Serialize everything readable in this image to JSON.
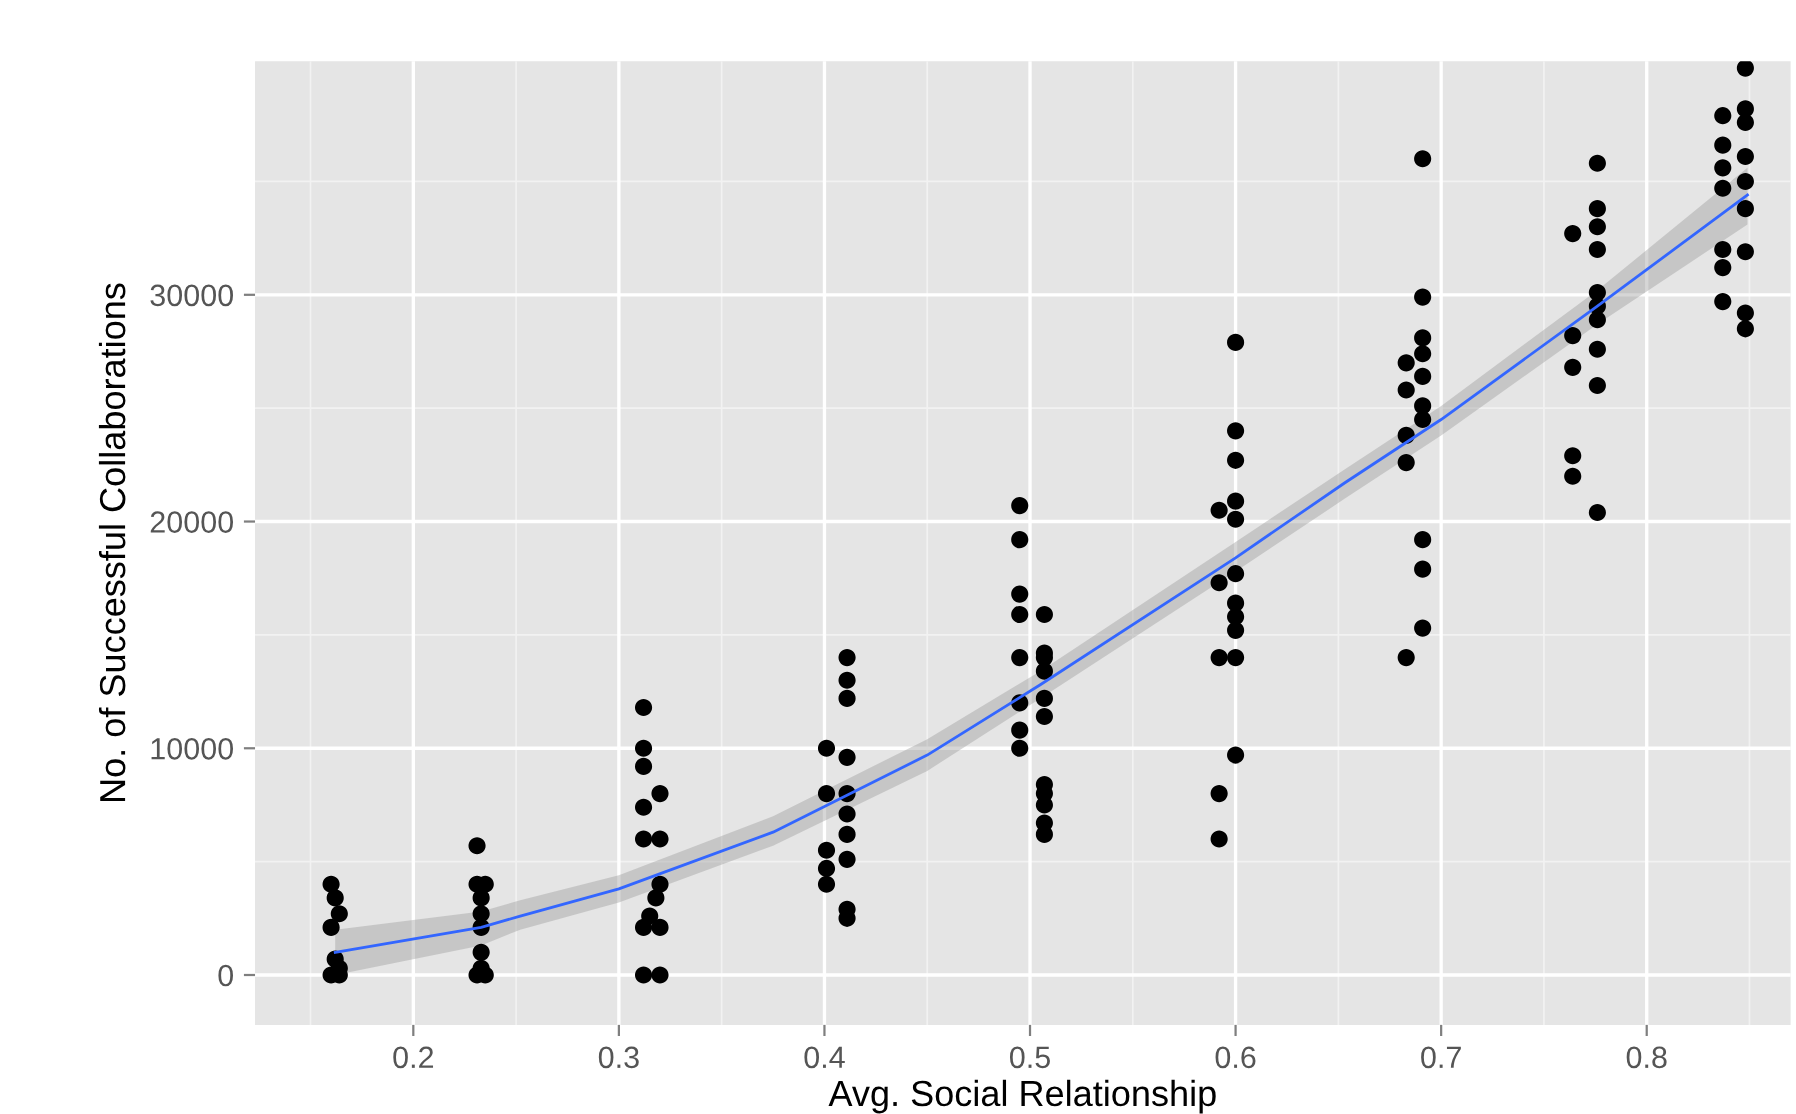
{
  "chart_data": {
    "type": "scatter",
    "xlabel": "Avg. Social Relationship",
    "ylabel": "No. of Successful Collaborations",
    "xlim": [
      0.123,
      0.87
    ],
    "ylim": [
      -2200,
      40300
    ],
    "xticks": [
      0.2,
      0.3,
      0.4,
      0.5,
      0.6,
      0.7,
      0.8
    ],
    "yticks": [
      0,
      10000,
      20000,
      30000
    ],
    "grid": true,
    "series": [
      {
        "color": "#000000",
        "marker": "circle",
        "x": [
          0.16,
          0.162,
          0.164,
          0.16,
          0.162,
          0.164,
          0.16,
          0.164,
          0.231,
          0.231,
          0.235,
          0.233,
          0.233,
          0.233,
          0.233,
          0.233,
          0.231,
          0.235,
          0.312,
          0.312,
          0.312,
          0.32,
          0.312,
          0.312,
          0.32,
          0.32,
          0.318,
          0.315,
          0.312,
          0.32,
          0.312,
          0.32,
          0.411,
          0.411,
          0.411,
          0.401,
          0.411,
          0.401,
          0.411,
          0.411,
          0.411,
          0.401,
          0.411,
          0.401,
          0.401,
          0.411,
          0.411,
          0.495,
          0.495,
          0.495,
          0.495,
          0.507,
          0.495,
          0.507,
          0.495,
          0.495,
          0.495,
          0.507,
          0.507,
          0.507,
          0.507,
          0.507,
          0.507,
          0.507,
          0.507,
          0.507,
          0.6,
          0.6,
          0.6,
          0.6,
          0.592,
          0.6,
          0.6,
          0.592,
          0.6,
          0.6,
          0.6,
          0.6,
          0.592,
          0.6,
          0.592,
          0.592,
          0.691,
          0.691,
          0.691,
          0.691,
          0.683,
          0.691,
          0.683,
          0.691,
          0.691,
          0.683,
          0.683,
          0.691,
          0.691,
          0.691,
          0.683,
          0.776,
          0.776,
          0.776,
          0.764,
          0.776,
          0.776,
          0.776,
          0.776,
          0.764,
          0.776,
          0.764,
          0.776,
          0.764,
          0.764,
          0.776,
          0.848,
          0.848,
          0.837,
          0.848,
          0.837,
          0.848,
          0.837,
          0.848,
          0.837,
          0.848,
          0.837,
          0.848,
          0.837,
          0.837,
          0.848,
          0.848
        ],
        "values": [
          4000,
          3400,
          2700,
          2100,
          700,
          300,
          0,
          0,
          5700,
          4000,
          4000,
          3400,
          2700,
          2100,
          1000,
          300,
          0,
          0,
          11800,
          10000,
          9200,
          8000,
          7400,
          6000,
          6000,
          4000,
          3400,
          2600,
          2100,
          2100,
          0,
          0,
          14000,
          13000,
          12200,
          10000,
          9600,
          8000,
          8000,
          7100,
          6200,
          5500,
          5100,
          4700,
          4000,
          2900,
          2500,
          20700,
          19200,
          16800,
          15900,
          15900,
          14000,
          14000,
          12000,
          10800,
          10000,
          14200,
          13400,
          12200,
          11400,
          8400,
          8000,
          7500,
          6700,
          6200,
          27900,
          24000,
          22700,
          20900,
          20500,
          20100,
          17700,
          17300,
          16400,
          15800,
          15200,
          14000,
          14000,
          9700,
          8000,
          6000,
          36000,
          29900,
          28100,
          27400,
          27000,
          26400,
          25800,
          25100,
          24500,
          23800,
          22600,
          19200,
          17900,
          15300,
          14000,
          35800,
          33800,
          33000,
          32700,
          32000,
          30100,
          29500,
          28900,
          28200,
          27600,
          26800,
          26000,
          22900,
          22000,
          20400,
          40000,
          38200,
          37900,
          37600,
          36600,
          36100,
          35600,
          35000,
          34700,
          33800,
          32000,
          31900,
          31200,
          29700,
          29200,
          28500
        ]
      },
      {
        "type": "line",
        "color": "#3366ff",
        "marker": "none",
        "x": [
          0.162,
          0.233,
          0.252,
          0.3,
          0.375,
          0.45,
          0.505,
          0.6,
          0.653,
          0.7,
          0.776,
          0.849
        ],
        "values": [
          1000,
          2100,
          2600,
          3800,
          6300,
          9700,
          12800,
          18400,
          21700,
          24500,
          29500,
          34400
        ],
        "lower": [
          0,
          1300,
          2000,
          3200,
          5700,
          9000,
          12200,
          17800,
          21000,
          23800,
          28700,
          33100
        ],
        "upper": [
          2000,
          2800,
          3300,
          4400,
          7000,
          10400,
          13400,
          19100,
          22300,
          25100,
          30200,
          35600
        ]
      }
    ]
  }
}
